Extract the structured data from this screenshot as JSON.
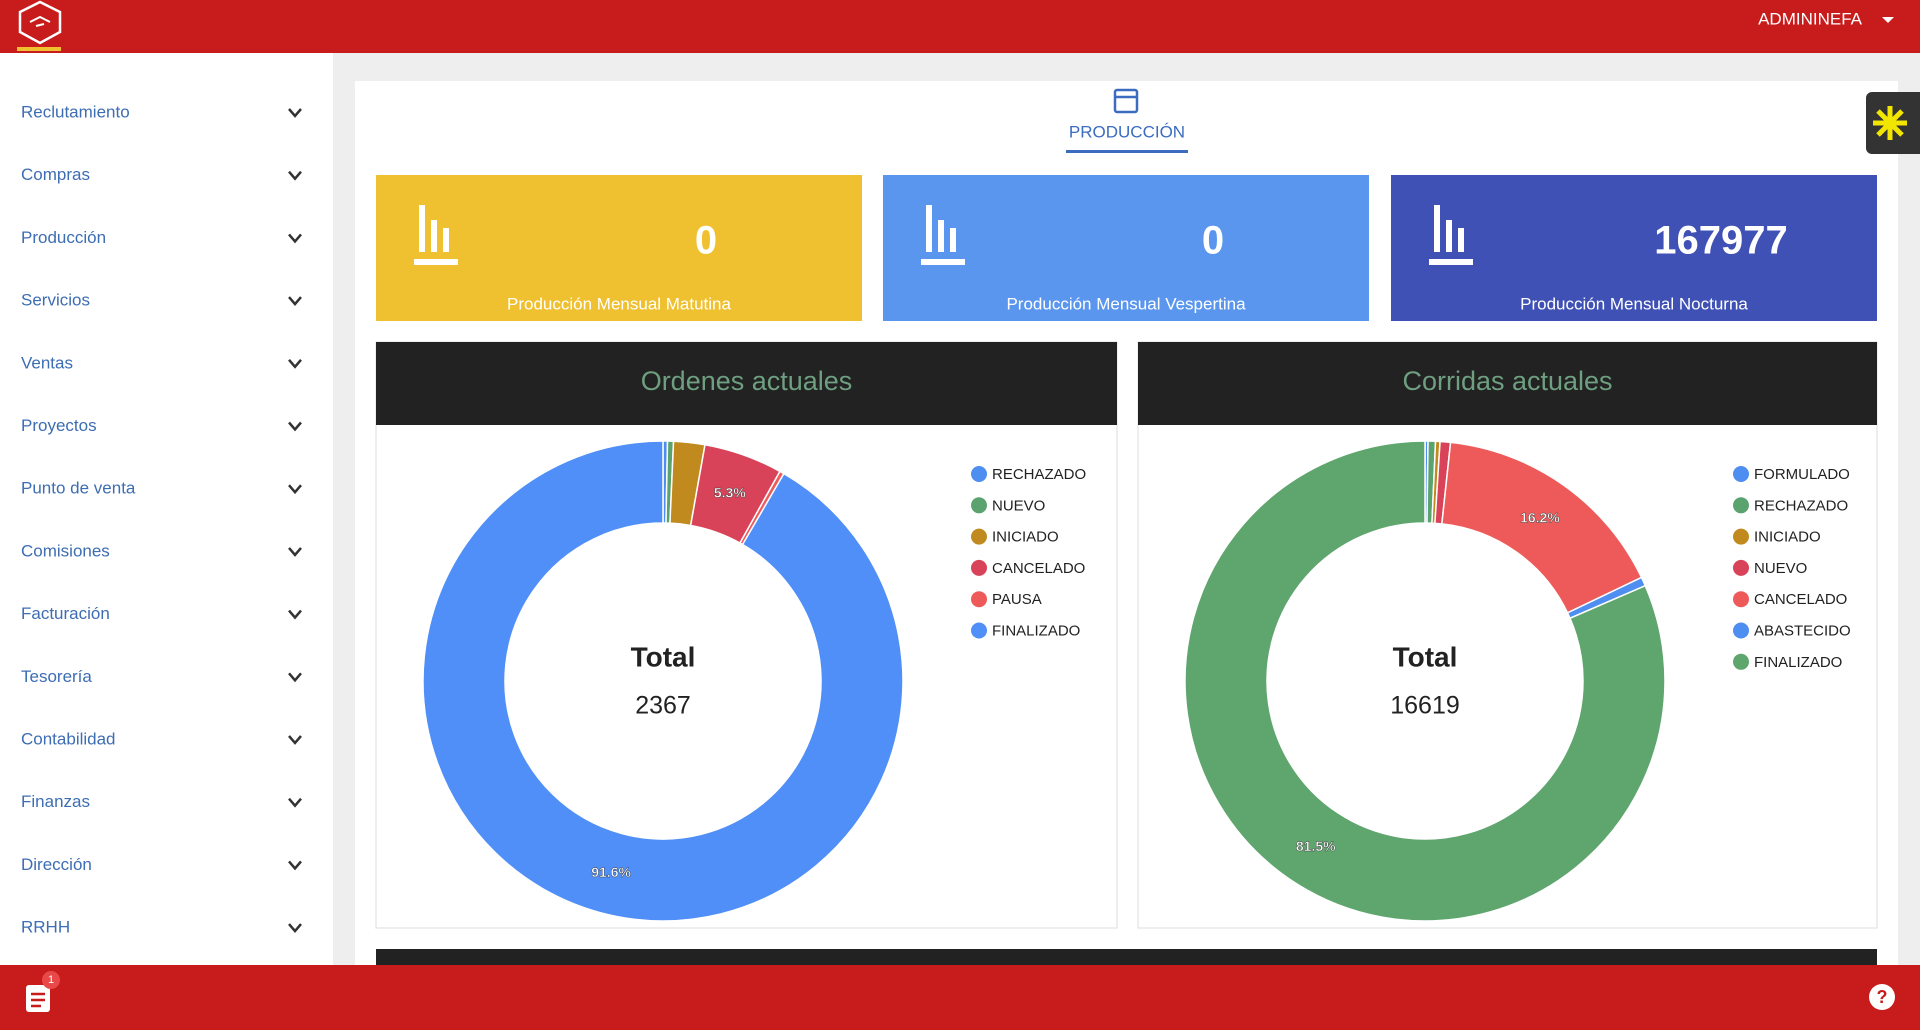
{
  "header": {
    "user": "ADMININEFA"
  },
  "sidebar": {
    "items": [
      "Reclutamiento",
      "Compras",
      "Producción",
      "Servicios",
      "Ventas",
      "Proyectos",
      "Punto de venta",
      "Comisiones",
      "Facturación",
      "Tesorería",
      "Contabilidad",
      "Finanzas",
      "Dirección",
      "RRHH"
    ]
  },
  "tab": "PRODUCCIÓN",
  "cards": [
    {
      "value": 0,
      "label": "Producción Mensual Matutina",
      "color": "#efc030"
    },
    {
      "value": 0,
      "label": "Producción Mensual Vespertina",
      "color": "#5a96ee"
    },
    {
      "value": 167977,
      "label": "Producción Mensual Nocturna",
      "color": "#3f51b5"
    }
  ],
  "footer": {
    "badge": 1
  },
  "chart_data": [
    {
      "type": "donut",
      "title": "Ordenes actuales",
      "center_title": "Total",
      "center_value": "2367",
      "categories": [
        "RECHAZADO",
        "NUEVO",
        "INICIADO",
        "CANCELADO",
        "PAUSA",
        "FINALIZADO"
      ],
      "values": [
        0.3,
        0.4,
        2.1,
        5.3,
        0.3,
        91.6
      ],
      "value_labels": [
        null,
        null,
        null,
        "5.3%",
        null,
        "91.6%"
      ],
      "colors": [
        "#4e8ef0",
        "#5aa26e",
        "#c08a1e",
        "#d9435a",
        "#ee5a5a",
        "#4f8ff7"
      ]
    },
    {
      "type": "donut",
      "title": "Corridas actuales",
      "center_title": "Total",
      "center_value": "16619",
      "categories": [
        "FORMULADO",
        "RECHAZADO",
        "INICIADO",
        "NUEVO",
        "CANCELADO",
        "ABASTECIDO",
        "FINALIZADO"
      ],
      "values": [
        0.2,
        0.5,
        0.3,
        0.7,
        16.2,
        0.6,
        81.5
      ],
      "value_labels": [
        null,
        null,
        null,
        null,
        "16.2%",
        null,
        "81.5%"
      ],
      "colors": [
        "#4e8ef0",
        "#5aa26e",
        "#c08a1e",
        "#d9435a",
        "#ee5a5a",
        "#4e8ef0",
        "#5fa56e"
      ]
    }
  ]
}
